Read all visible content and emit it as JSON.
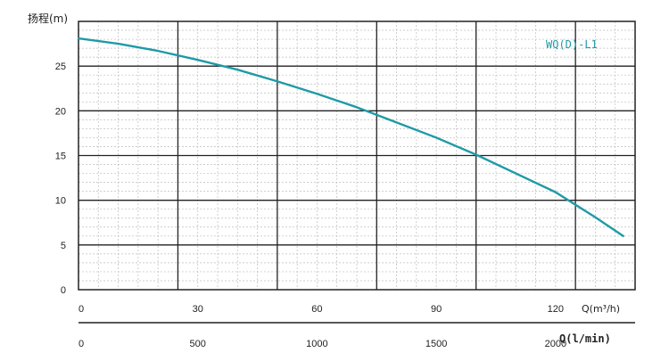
{
  "chart_data": {
    "type": "line",
    "ylabel": "扬程(m)",
    "xlabel": "Q(m³/h)",
    "xlabel_secondary": "Q(l/min)",
    "ylim": [
      0,
      30
    ],
    "xlim": [
      0,
      140
    ],
    "y_ticks": [
      "0",
      "5",
      "10",
      "15",
      "20",
      "25"
    ],
    "x_ticks": [
      "0",
      "30",
      "60",
      "90",
      "120"
    ],
    "x_secondary_ticks": [
      "0",
      "500",
      "1000",
      "1500",
      "2000"
    ],
    "grid": true,
    "series": [
      {
        "name": "WQ(D)-L1",
        "color": "#1f9aa6",
        "x": [
          0,
          10,
          20,
          30,
          40,
          50,
          60,
          70,
          80,
          90,
          100,
          110,
          120,
          130,
          137
        ],
        "y": [
          28.1,
          27.5,
          26.7,
          25.7,
          24.6,
          23.3,
          21.9,
          20.4,
          18.7,
          17.0,
          15.1,
          13.0,
          10.9,
          8.1,
          6.0
        ]
      }
    ]
  }
}
